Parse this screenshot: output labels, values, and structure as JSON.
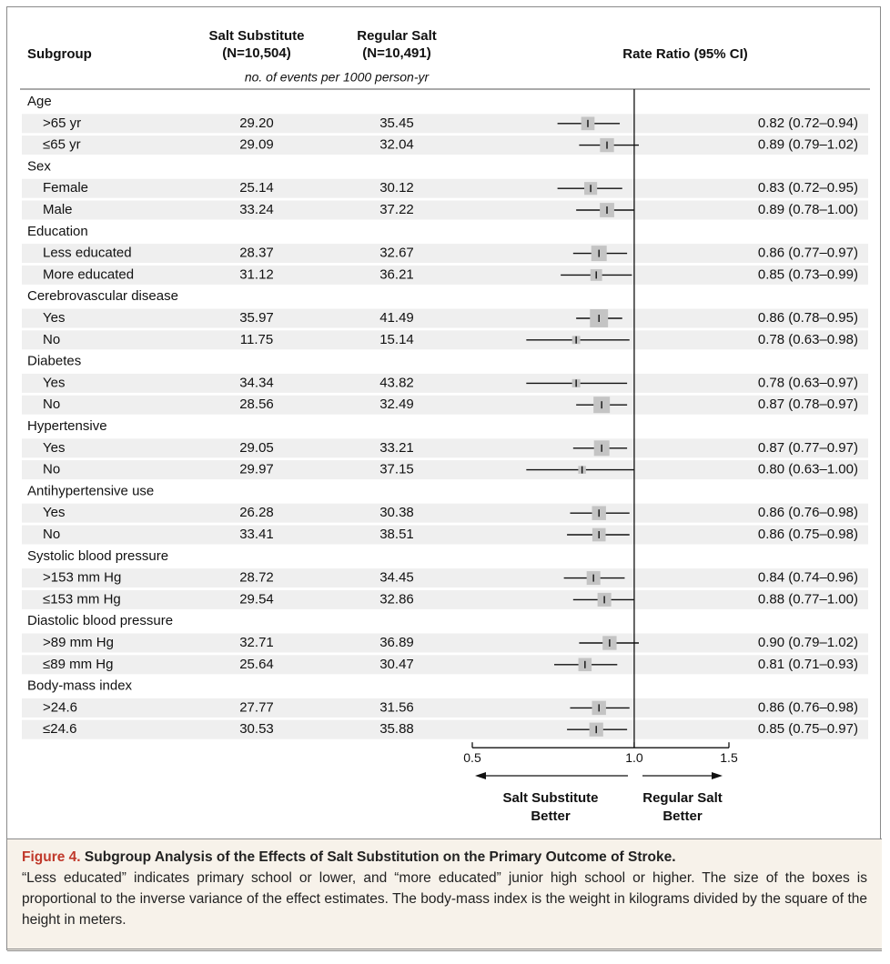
{
  "chart_data": {
    "type": "forest",
    "headers": {
      "subgroup": "Subgroup",
      "substitute": [
        "Salt Substitute",
        "(N=10,504)"
      ],
      "regular": [
        "Regular Salt",
        "(N=10,491)"
      ],
      "units": "no. of events per 1000 person-yr",
      "ratio": "Rate Ratio (95% CI)"
    },
    "groups": [
      {
        "name": "Age",
        "rows": [
          {
            "label": ">65 yr",
            "substitute": "29.20",
            "regular": "35.45",
            "estimate": 0.82,
            "lo": 0.72,
            "hi": 0.94,
            "ci_label": "0.82 (0.72–0.94)"
          },
          {
            "label": "≤65 yr",
            "substitute": "29.09",
            "regular": "32.04",
            "estimate": 0.89,
            "lo": 0.79,
            "hi": 1.02,
            "ci_label": "0.89 (0.79–1.02)"
          }
        ]
      },
      {
        "name": "Sex",
        "rows": [
          {
            "label": "Female",
            "substitute": "25.14",
            "regular": "30.12",
            "estimate": 0.83,
            "lo": 0.72,
            "hi": 0.95,
            "ci_label": "0.83 (0.72–0.95)"
          },
          {
            "label": "Male",
            "substitute": "33.24",
            "regular": "37.22",
            "estimate": 0.89,
            "lo": 0.78,
            "hi": 1.0,
            "ci_label": "0.89 (0.78–1.00)"
          }
        ]
      },
      {
        "name": "Education",
        "rows": [
          {
            "label": "Less educated",
            "substitute": "28.37",
            "regular": "32.67",
            "estimate": 0.86,
            "lo": 0.77,
            "hi": 0.97,
            "ci_label": "0.86 (0.77–0.97)"
          },
          {
            "label": "More educated",
            "substitute": "31.12",
            "regular": "36.21",
            "estimate": 0.85,
            "lo": 0.73,
            "hi": 0.99,
            "ci_label": "0.85 (0.73–0.99)"
          }
        ]
      },
      {
        "name": "Cerebrovascular disease",
        "rows": [
          {
            "label": "Yes",
            "substitute": "35.97",
            "regular": "41.49",
            "estimate": 0.86,
            "lo": 0.78,
            "hi": 0.95,
            "ci_label": "0.86 (0.78–0.95)"
          },
          {
            "label": "No",
            "substitute": "11.75",
            "regular": "15.14",
            "estimate": 0.78,
            "lo": 0.63,
            "hi": 0.98,
            "ci_label": "0.78 (0.63–0.98)"
          }
        ]
      },
      {
        "name": "Diabetes",
        "rows": [
          {
            "label": "Yes",
            "substitute": "34.34",
            "regular": "43.82",
            "estimate": 0.78,
            "lo": 0.63,
            "hi": 0.97,
            "ci_label": "0.78 (0.63–0.97)"
          },
          {
            "label": "No",
            "substitute": "28.56",
            "regular": "32.49",
            "estimate": 0.87,
            "lo": 0.78,
            "hi": 0.97,
            "ci_label": "0.87 (0.78–0.97)"
          }
        ]
      },
      {
        "name": "Hypertensive",
        "rows": [
          {
            "label": "Yes",
            "substitute": "29.05",
            "regular": "33.21",
            "estimate": 0.87,
            "lo": 0.77,
            "hi": 0.97,
            "ci_label": "0.87 (0.77–0.97)"
          },
          {
            "label": "No",
            "substitute": "29.97",
            "regular": "37.15",
            "estimate": 0.8,
            "lo": 0.63,
            "hi": 1.0,
            "ci_label": "0.80 (0.63–1.00)"
          }
        ]
      },
      {
        "name": "Antihypertensive use",
        "rows": [
          {
            "label": "Yes",
            "substitute": "26.28",
            "regular": "30.38",
            "estimate": 0.86,
            "lo": 0.76,
            "hi": 0.98,
            "ci_label": "0.86 (0.76–0.98)"
          },
          {
            "label": "No",
            "substitute": "33.41",
            "regular": "38.51",
            "estimate": 0.86,
            "lo": 0.75,
            "hi": 0.98,
            "ci_label": "0.86 (0.75–0.98)"
          }
        ]
      },
      {
        "name": "Systolic blood pressure",
        "rows": [
          {
            "label": ">153 mm Hg",
            "substitute": "28.72",
            "regular": "34.45",
            "estimate": 0.84,
            "lo": 0.74,
            "hi": 0.96,
            "ci_label": "0.84 (0.74–0.96)"
          },
          {
            "label": "≤153 mm Hg",
            "substitute": "29.54",
            "regular": "32.86",
            "estimate": 0.88,
            "lo": 0.77,
            "hi": 1.0,
            "ci_label": "0.88 (0.77–1.00)"
          }
        ]
      },
      {
        "name": "Diastolic blood pressure",
        "rows": [
          {
            "label": ">89 mm Hg",
            "substitute": "32.71",
            "regular": "36.89",
            "estimate": 0.9,
            "lo": 0.79,
            "hi": 1.02,
            "ci_label": "0.90 (0.79–1.02)"
          },
          {
            "label": "≤89 mm Hg",
            "substitute": "25.64",
            "regular": "30.47",
            "estimate": 0.81,
            "lo": 0.71,
            "hi": 0.93,
            "ci_label": "0.81 (0.71–0.93)"
          }
        ]
      },
      {
        "name": "Body-mass index",
        "rows": [
          {
            "label": ">24.6",
            "substitute": "27.77",
            "regular": "31.56",
            "estimate": 0.86,
            "lo": 0.76,
            "hi": 0.98,
            "ci_label": "0.86 (0.76–0.98)"
          },
          {
            "label": "≤24.6",
            "substitute": "30.53",
            "regular": "35.88",
            "estimate": 0.85,
            "lo": 0.75,
            "hi": 0.97,
            "ci_label": "0.85 (0.75–0.97)"
          }
        ]
      }
    ],
    "xlim": [
      0.5,
      1.5
    ],
    "xticks": [
      0.5,
      {
        "value": 1,
        "label": "1.0"
      },
      1.5
    ],
    "log_x": true,
    "reference": 1,
    "box_color": "#c4c4c4",
    "arrow_labels": {
      "left": [
        "Salt Substitute",
        "Better"
      ],
      "right": [
        "Regular Salt",
        "Better"
      ]
    }
  },
  "caption": {
    "figure": "Figure 4.",
    "title": "Subgroup Analysis of the Effects of Salt Substitution on the Primary Outcome of Stroke.",
    "text": "“Less educated” indicates primary school or lower, and “more educated” junior high school or higher. The size of the boxes is proportional to the inverse variance of the effect estimates. The body-mass index is the weight in kilograms divided by the square of the height in meters."
  }
}
